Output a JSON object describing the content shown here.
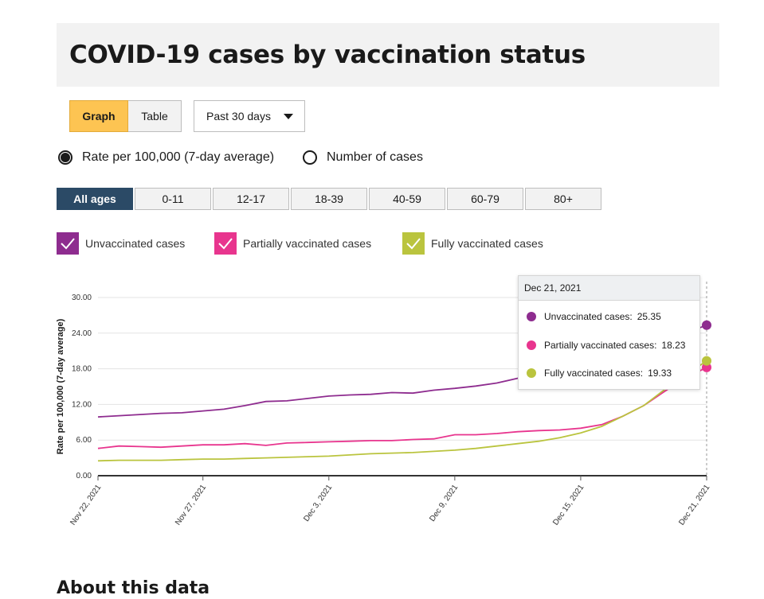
{
  "page": {
    "title": "COVID-19 cases by vaccination status",
    "about_heading": "About this data"
  },
  "view_toggle": {
    "graph_label": "Graph",
    "table_label": "Table",
    "selected": "Graph"
  },
  "range_select": {
    "value": "Past 30 days"
  },
  "radios": {
    "rate_label": "Rate per 100,000 (7-day average)",
    "count_label": "Number of cases",
    "selected": "rate"
  },
  "age_groups": [
    {
      "label": "All ages",
      "active": true
    },
    {
      "label": "0-11",
      "active": false
    },
    {
      "label": "12-17",
      "active": false
    },
    {
      "label": "18-39",
      "active": false
    },
    {
      "label": "40-59",
      "active": false
    },
    {
      "label": "60-79",
      "active": false
    },
    {
      "label": "80+",
      "active": false
    }
  ],
  "legend": [
    {
      "label": "Unvaccinated cases",
      "color": "#8e2c8f",
      "checked": true
    },
    {
      "label": "Partially vaccinated cases",
      "color": "#e8358e",
      "checked": true
    },
    {
      "label": "Fully vaccinated cases",
      "color": "#bac43e",
      "checked": true
    }
  ],
  "tooltip": {
    "date": "Dec 21, 2021",
    "rows": [
      {
        "label": "Unvaccinated cases:",
        "value": "25.35",
        "color": "#8e2c8f"
      },
      {
        "label": "Partially vaccinated cases:",
        "value": "18.23",
        "color": "#e8358e"
      },
      {
        "label": "Fully vaccinated cases:",
        "value": "19.33",
        "color": "#bac43e"
      }
    ]
  },
  "chart_data": {
    "type": "line",
    "ylabel": "Rate per 100,000 (7-day average)",
    "ylim": [
      0,
      30
    ],
    "yticks": [
      "0.00",
      "6.00",
      "12.00",
      "18.00",
      "24.00",
      "30.00"
    ],
    "xticks": [
      "Nov 22, 2021",
      "Nov 27, 2021",
      "Dec 3, 2021",
      "Dec 9, 2021",
      "Dec 15, 2021",
      "Dec 21, 2021"
    ],
    "x": [
      "Nov 22, 2021",
      "Nov 23, 2021",
      "Nov 24, 2021",
      "Nov 25, 2021",
      "Nov 26, 2021",
      "Nov 27, 2021",
      "Nov 28, 2021",
      "Nov 29, 2021",
      "Nov 30, 2021",
      "Dec 1, 2021",
      "Dec 2, 2021",
      "Dec 3, 2021",
      "Dec 4, 2021",
      "Dec 5, 2021",
      "Dec 6, 2021",
      "Dec 7, 2021",
      "Dec 8, 2021",
      "Dec 9, 2021",
      "Dec 10, 2021",
      "Dec 11, 2021",
      "Dec 12, 2021",
      "Dec 13, 2021",
      "Dec 14, 2021",
      "Dec 15, 2021",
      "Dec 16, 2021",
      "Dec 17, 2021",
      "Dec 18, 2021",
      "Dec 19, 2021",
      "Dec 20, 2021",
      "Dec 21, 2021"
    ],
    "grid": true,
    "series": [
      {
        "name": "Unvaccinated cases",
        "color": "#8e2c8f",
        "values": [
          9.9,
          10.1,
          10.3,
          10.5,
          10.6,
          10.9,
          11.2,
          11.8,
          12.5,
          12.6,
          13.0,
          13.4,
          13.6,
          13.7,
          14.0,
          13.9,
          14.4,
          14.7,
          15.1,
          15.6,
          16.4,
          16.6,
          17.0,
          17.4,
          18.0,
          19.0,
          20.5,
          22.5,
          24.0,
          25.35
        ]
      },
      {
        "name": "Partially vaccinated cases",
        "color": "#e8358e",
        "values": [
          4.6,
          5.0,
          4.9,
          4.8,
          5.0,
          5.2,
          5.2,
          5.4,
          5.1,
          5.5,
          5.6,
          5.7,
          5.8,
          5.9,
          5.9,
          6.1,
          6.2,
          6.9,
          6.9,
          7.1,
          7.4,
          7.6,
          7.7,
          8.0,
          8.6,
          10.0,
          11.8,
          14.2,
          16.5,
          18.23
        ]
      },
      {
        "name": "Fully vaccinated cases",
        "color": "#bac43e",
        "values": [
          2.5,
          2.6,
          2.6,
          2.6,
          2.7,
          2.8,
          2.8,
          2.9,
          3.0,
          3.1,
          3.2,
          3.3,
          3.5,
          3.7,
          3.8,
          3.9,
          4.1,
          4.3,
          4.6,
          5.0,
          5.4,
          5.8,
          6.4,
          7.2,
          8.3,
          10.0,
          11.8,
          14.5,
          17.0,
          19.33
        ]
      }
    ]
  }
}
